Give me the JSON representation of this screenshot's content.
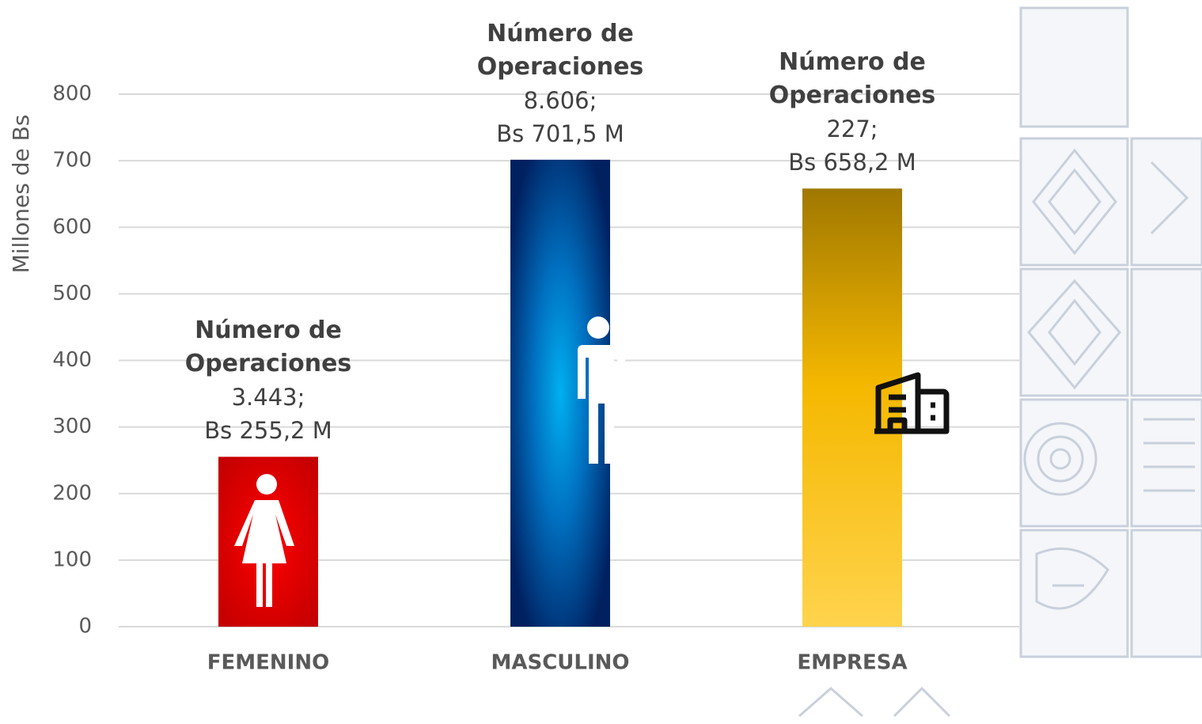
{
  "chart_data": {
    "type": "bar",
    "y_axis_label": "Millones de Bs",
    "categories": [
      "FEMENINO",
      "MASCULINO",
      "EMPRESA"
    ],
    "values": [
      255.2,
      701.5,
      658.2
    ],
    "value_labels": [
      "Bs 255,2 M",
      "Bs 701,5 M",
      "Bs 658,2 M"
    ],
    "operations_label": "Número de Operaciones",
    "operations": [
      {
        "value": 3443,
        "label": "3.443;"
      },
      {
        "value": 8606,
        "label": "8.606;"
      },
      {
        "value": 227,
        "label": "227;"
      }
    ],
    "colors": [
      "#c00000",
      "#002060",
      "#a07800"
    ],
    "ylim": [
      0,
      800
    ],
    "yticks": [
      0,
      100,
      200,
      300,
      400,
      500,
      600,
      700,
      800
    ],
    "grid": true
  }
}
